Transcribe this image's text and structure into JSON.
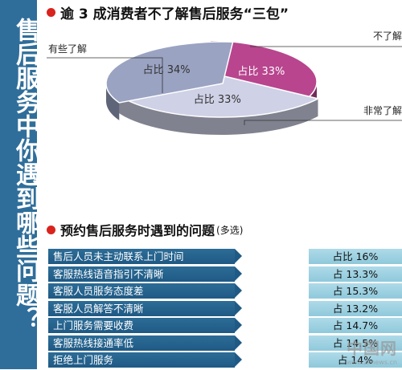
{
  "sidebar": {
    "title": "售后服务中你遇到哪些问题？"
  },
  "section1": {
    "title": "逾 3 成消费者不了解售后服务“三包”"
  },
  "chart_data": [
    {
      "type": "pie",
      "title": "逾 3 成消费者不了解售后服务“三包”",
      "slices": [
        {
          "name": "有些了解",
          "value": 33,
          "label": "占比 33%",
          "color": "#b8458e"
        },
        {
          "name": "不了解",
          "value": 33,
          "label": "占比 33%",
          "color": "#cfd1e6"
        },
        {
          "name": "非常了解",
          "value": 34,
          "label": "占比 34%",
          "color": "#9aa3c2"
        }
      ]
    },
    {
      "type": "table",
      "title": "预约售后服务时遇到的问题",
      "note": "(多选)",
      "rows": [
        {
          "problem": "售后人员未主动联系上门时间",
          "value": "占比 16%"
        },
        {
          "problem": "客服热线语音指引不清晰",
          "value": "占 13.3%"
        },
        {
          "problem": "客服人员服务态度差",
          "value": "占 15.3%"
        },
        {
          "problem": "客服人员解答不清晰",
          "value": "占 13.2%"
        },
        {
          "problem": "上门服务需要收费",
          "value": "占 14.7%"
        },
        {
          "problem": "客服热线接通率低",
          "value": "占 14.5%"
        },
        {
          "problem": "拒绝上门服务",
          "value": "占 14%"
        }
      ]
    }
  ],
  "section2": {
    "title": "预约售后服务时遇到的问题",
    "note": "(多选)"
  },
  "watermark": {
    "logo": "中国网",
    "url": "www.zknews.cn"
  },
  "colors": {
    "sidebar": "#2f6e9a",
    "bullet": "#d9231d",
    "label_bar": "#1f5a85",
    "value_bar": "#a0d1e1"
  }
}
